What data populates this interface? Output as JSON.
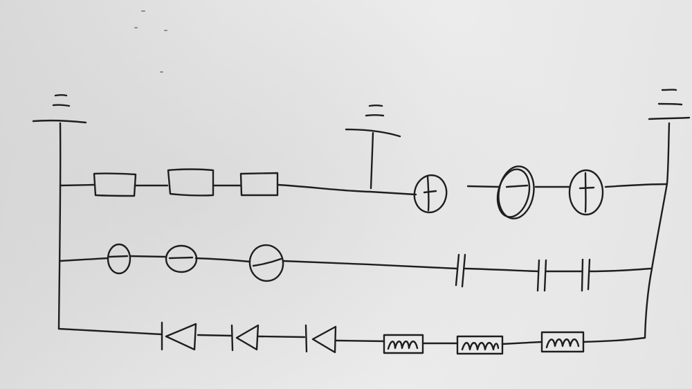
{
  "diagram": {
    "kind": "hand-drawn circuit sketch",
    "grounds": [
      {
        "id": "ground-left",
        "icon": "ground-icon"
      },
      {
        "id": "ground-middle",
        "icon": "ground-icon"
      },
      {
        "id": "ground-right",
        "icon": "ground-icon"
      }
    ],
    "rows": [
      {
        "id": "top-row",
        "components": [
          {
            "type": "resistor",
            "icon": "resistor-icon",
            "count": 3
          },
          {
            "type": "lamp",
            "icon": "lamp-icon",
            "count": 3
          }
        ]
      },
      {
        "id": "middle-row",
        "components": [
          {
            "type": "lamp",
            "icon": "lamp-icon",
            "count": 3
          },
          {
            "type": "capacitor",
            "icon": "capacitor-icon",
            "count": 3
          }
        ]
      },
      {
        "id": "bottom-row",
        "components": [
          {
            "type": "diode",
            "icon": "diode-icon",
            "count": 3
          },
          {
            "type": "inductor",
            "icon": "inductor-icon",
            "count": 3
          }
        ]
      }
    ]
  }
}
